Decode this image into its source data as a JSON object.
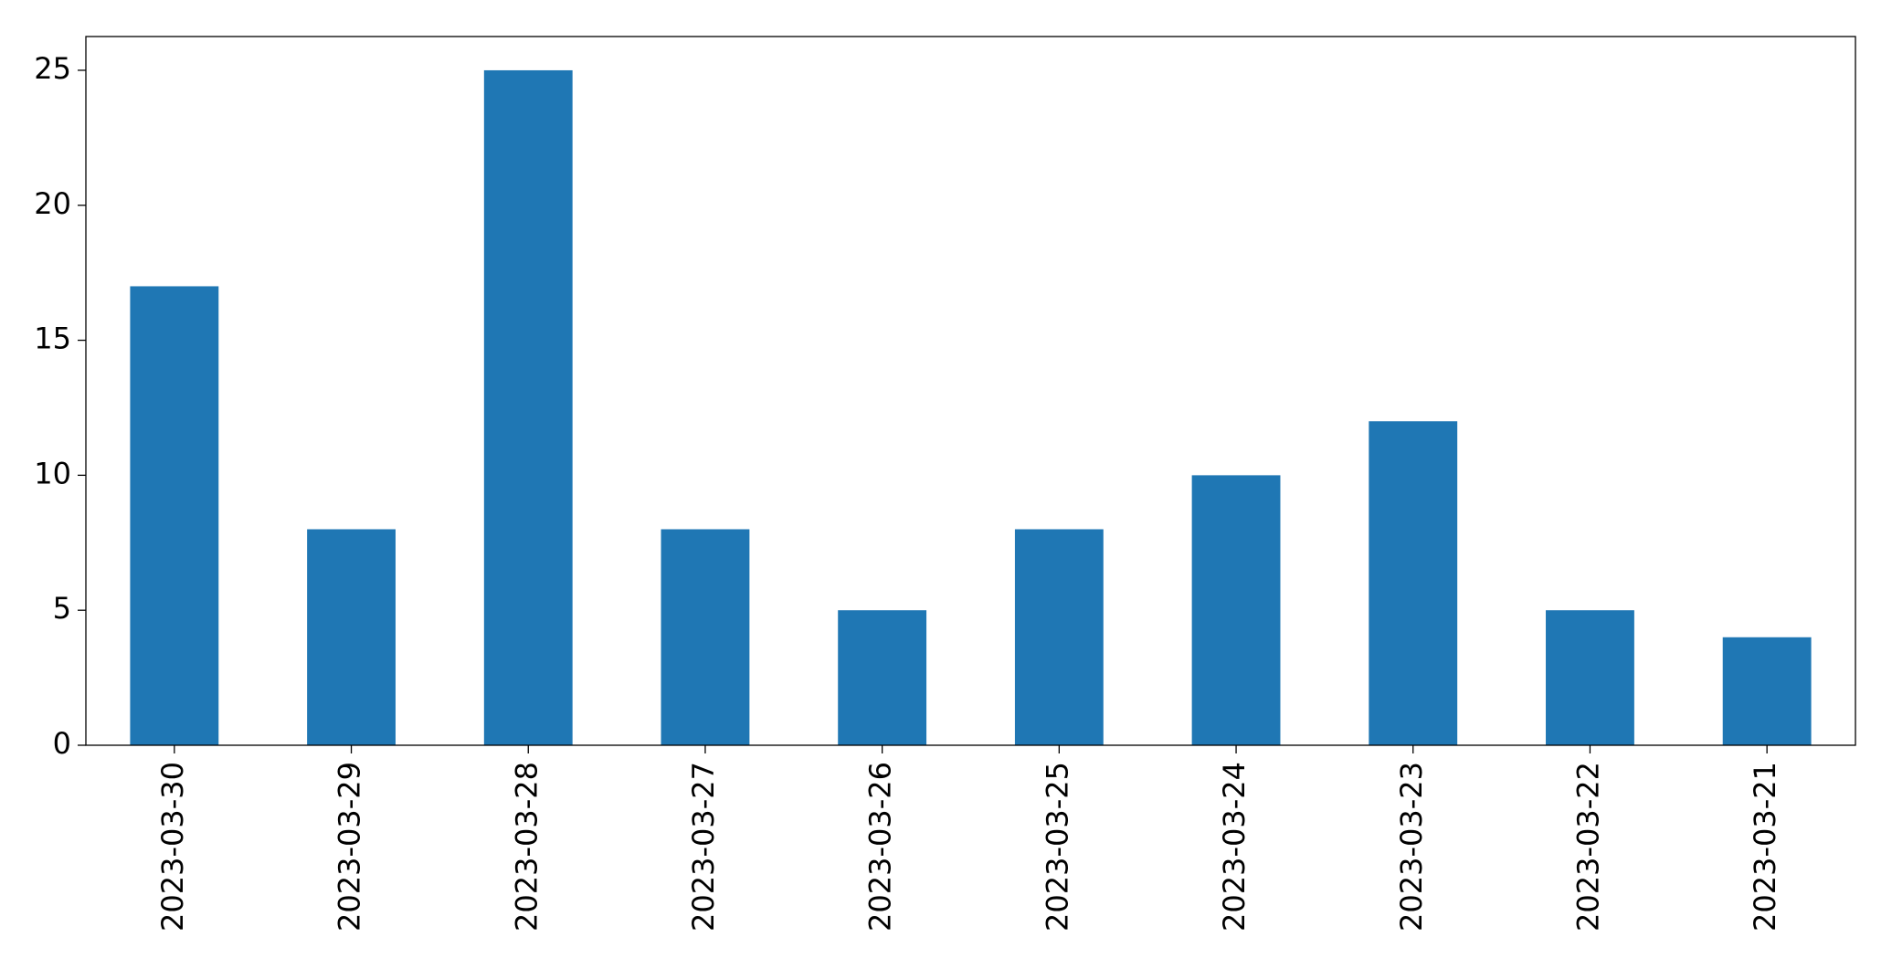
{
  "chart_data": {
    "type": "bar",
    "categories": [
      "2023-03-30",
      "2023-03-29",
      "2023-03-28",
      "2023-03-27",
      "2023-03-26",
      "2023-03-25",
      "2023-03-24",
      "2023-03-23",
      "2023-03-22",
      "2023-03-21"
    ],
    "values": [
      17,
      8,
      25,
      8,
      5,
      8,
      10,
      12,
      5,
      4
    ],
    "color": "#1f77b4",
    "ylim": [
      0,
      26.25
    ],
    "yticks": [
      0,
      5,
      10,
      15,
      20,
      25
    ],
    "grid": false
  }
}
